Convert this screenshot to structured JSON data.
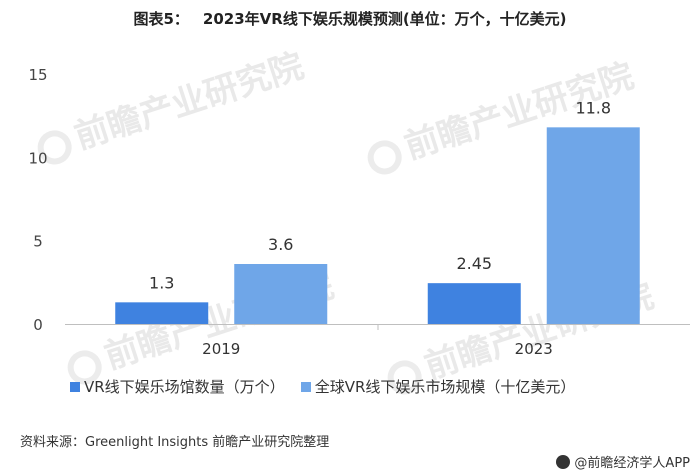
{
  "title": {
    "prefix": "图表5：",
    "text": "2023年VR线下娱乐规模预测(单位：万个，十亿美元)"
  },
  "chart_data": {
    "type": "bar",
    "categories": [
      "2019",
      "2023"
    ],
    "series": [
      {
        "name": "VR线下娱乐场馆数量（万个）",
        "values": [
          1.3,
          2.45
        ],
        "labels": [
          "1.3",
          "2.45"
        ],
        "color": "#3f82e0"
      },
      {
        "name": "全球VR线下娱乐市场规模（十亿美元）",
        "values": [
          3.6,
          11.8
        ],
        "labels": [
          "3.6",
          "11.8"
        ],
        "color": "#6fa6e8"
      }
    ],
    "ylim": [
      0,
      15
    ],
    "yticks": [
      "0",
      "5",
      "10",
      "15"
    ],
    "grid": false,
    "legend_position": "bottom"
  },
  "watermark": {
    "text": "前瞻产业研究院"
  },
  "source": "资料来源：Greenlight Insights 前瞻产业研究院整理",
  "brand": "@前瞻经济学人APP"
}
